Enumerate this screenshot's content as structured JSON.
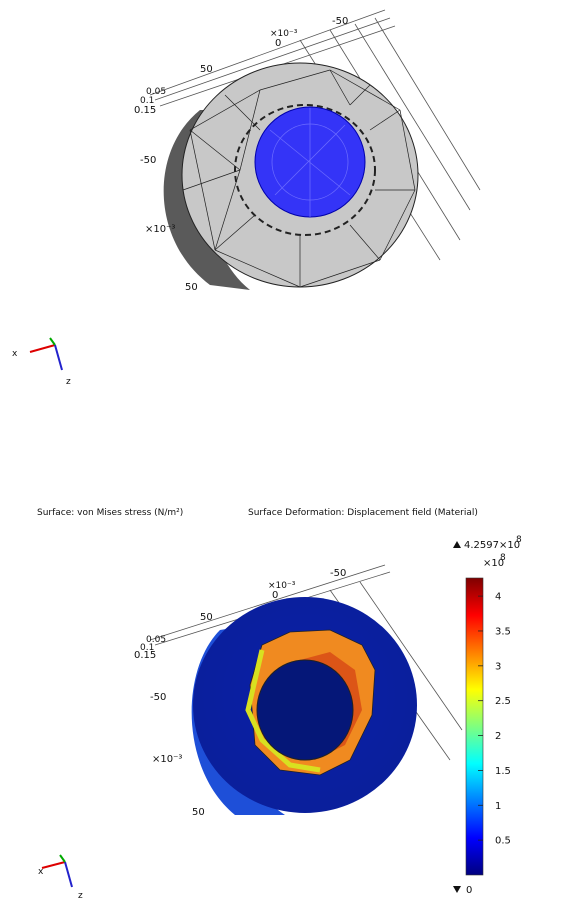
{
  "view1": {
    "axis_labels": [
      "×10⁻³",
      "-50",
      "50",
      "0",
      "0.05",
      "0.1",
      "0.15",
      "-50",
      "×10⁻³",
      "50"
    ],
    "triad": {
      "x": "x",
      "z": "z"
    }
  },
  "view2": {
    "title": "Surface: von Mises stress (N/m²)",
    "subtitle": "Surface Deformation: Displacement field (Material)",
    "axis_labels": [
      "×10⁻³",
      "-50",
      "50",
      "0",
      "0.05",
      "0.1",
      "0.15",
      "-50",
      "×10⁻³",
      "50"
    ],
    "triad": {
      "x": "x",
      "z": "z"
    },
    "colorbar": {
      "min": 0,
      "max": {
        "value": 4.2597,
        "label": "4.2597×10"
      },
      "max_exponent": "8",
      "scale_label": "×10",
      "scale_exponent": "8",
      "ticks": [
        0.5,
        1,
        1.5,
        2,
        2.5,
        3,
        3.5,
        4
      ]
    }
  }
}
